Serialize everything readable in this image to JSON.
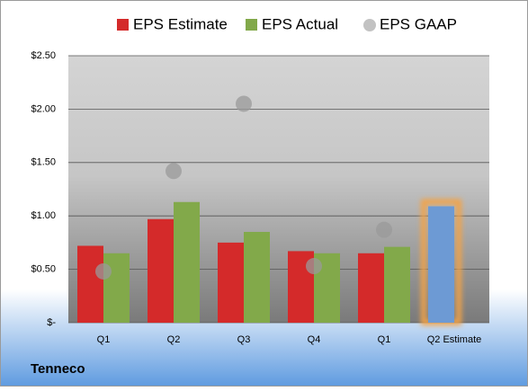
{
  "chart_data": {
    "type": "bar",
    "title": "Tenneco",
    "categories": [
      "Q1",
      "Q2",
      "Q3",
      "Q4",
      "Q1",
      "Q2 Estimate"
    ],
    "series": [
      {
        "name": "EPS Estimate",
        "color": "#d42a2a",
        "values": [
          0.72,
          0.97,
          0.75,
          0.67,
          0.65,
          1.09
        ]
      },
      {
        "name": "EPS Actual",
        "color": "#82a94a",
        "values": [
          0.65,
          1.13,
          0.85,
          0.65,
          0.71,
          null
        ]
      },
      {
        "name": "EPS GAAP",
        "color": "#9a9a9a",
        "marker": "circle",
        "values": [
          0.48,
          1.42,
          2.05,
          0.53,
          0.87,
          null
        ]
      }
    ],
    "highlight": {
      "index": 5,
      "color": "#6d9ad4",
      "glow": "#f3a347"
    },
    "ylim": [
      0,
      2.5
    ],
    "yticks": [
      {
        "value": 0,
        "label": "$-"
      },
      {
        "value": 0.5,
        "label": "$0.50"
      },
      {
        "value": 1,
        "label": "$1.00"
      },
      {
        "value": 1.5,
        "label": "$1.50"
      },
      {
        "value": 2,
        "label": "$2.00"
      },
      {
        "value": 2.5,
        "label": "$2.50"
      }
    ],
    "grid": true
  }
}
